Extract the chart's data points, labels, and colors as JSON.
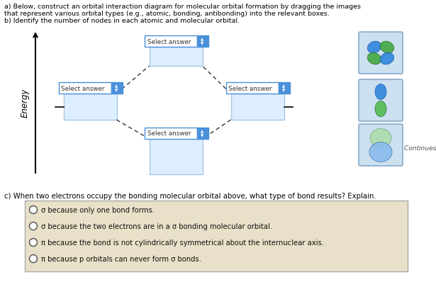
{
  "bg_color": "#ffffff",
  "text_color": "#000000",
  "title_lines": [
    "a) Below, construct an orbital interaction diagram for molecular orbital formation by dragging the images",
    "that represent various orbital types (e.g., atomic, bonding, antibonding) into the relevant boxes.",
    "b) Identify the number of nodes in each atomic and molecular orbital."
  ],
  "question_c": "c) When two electrons occupy the bonding molecular orbital above, what type of bond results? Explain.",
  "choices": [
    "σ because only one bond forms.",
    "σ because the two electrons are in a σ bonding molecular orbital.",
    "π because the bond is not cylindrically symmetrical about the internuclear axis.",
    "π because p orbitals can never form σ bonds."
  ],
  "select_answer_color": "#4a90d9",
  "box_border_color": "#a8c8e8",
  "box_fill_color": "#ddeeff",
  "dashed_line_color": "#333333",
  "choice_box_color": "#e8e0c8",
  "choice_box_border": "#aaaaaa",
  "orb_box_color": "#cce0f0",
  "orb_box_border": "#88aacc"
}
